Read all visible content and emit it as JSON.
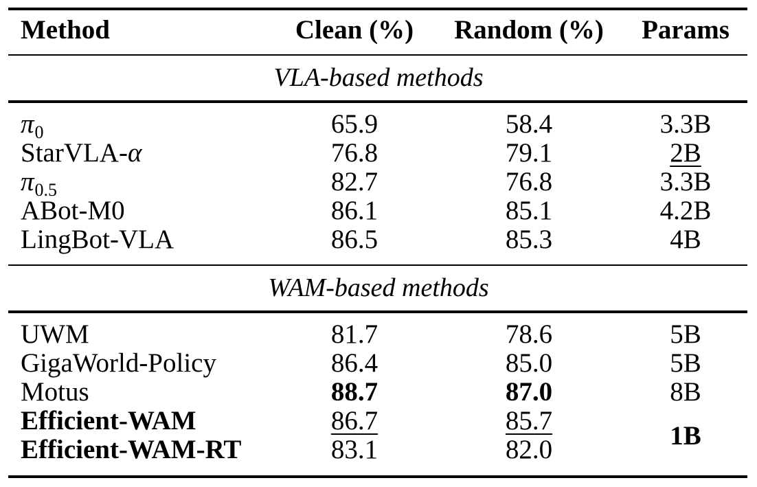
{
  "table": {
    "header": {
      "method": "Method",
      "clean": "Clean (%)",
      "random": "Random (%)",
      "params": "Params"
    },
    "groups": [
      {
        "title": "VLA-based methods",
        "rows": [
          {
            "method_symbol": "π",
            "method_sub": "0",
            "clean": "65.9",
            "random": "58.4",
            "params": "3.3B"
          },
          {
            "method_prefix": "StarVLA-",
            "method_symbol": "α",
            "clean": "76.8",
            "random": "79.1",
            "params": "2B",
            "params_underline": true
          },
          {
            "method_symbol": "π",
            "method_sub": "0.5",
            "clean": "82.7",
            "random": "76.8",
            "params": "3.3B"
          },
          {
            "method": "ABot-M0",
            "clean": "86.1",
            "random": "85.1",
            "params": "4.2B"
          },
          {
            "method": "LingBot-VLA",
            "clean": "86.5",
            "random": "85.3",
            "params": "4B"
          }
        ]
      },
      {
        "title": "WAM-based methods",
        "rows": [
          {
            "method": "UWM",
            "clean": "81.7",
            "random": "78.6",
            "params": "5B"
          },
          {
            "method": "GigaWorld-Policy",
            "clean": "86.4",
            "random": "85.0",
            "params": "5B"
          },
          {
            "method": "Motus",
            "clean": "88.7",
            "random": "87.0",
            "params": "8B",
            "clean_bold": true,
            "random_bold": true
          },
          {
            "method": "Efficient-WAM",
            "clean": "86.7",
            "random": "85.7",
            "method_bold": true,
            "clean_underline": true,
            "random_underline": true
          },
          {
            "method": "Efficient-WAM-RT",
            "clean": "83.1",
            "random": "82.0",
            "method_bold": true
          }
        ],
        "merged_params": "1B"
      }
    ]
  }
}
